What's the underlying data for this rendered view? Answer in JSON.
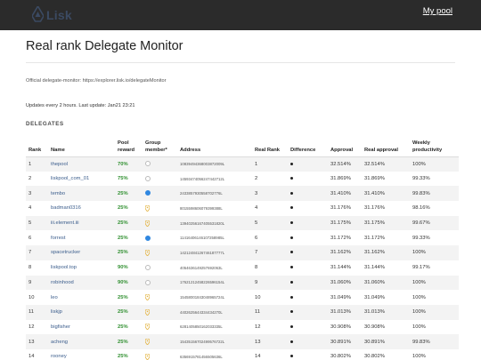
{
  "header": {
    "logo_text": "Lisk",
    "nav_link": "My pool"
  },
  "page": {
    "title": "Real rank Delegate Monitor",
    "info": "Official delegate-monitor: https://explorer.lisk.io/delegateMonitor",
    "updates": "Updates every 2 hours. Last update: Jan21 23:21",
    "section": "DELEGATES"
  },
  "table": {
    "headers": [
      "Rank",
      "Name",
      "Pool reward",
      "Group member*",
      "Address",
      "Real Rank",
      "Difference",
      "Approval",
      "Real approval",
      "Weekly productivity"
    ],
    "rows": [
      {
        "rank": "1",
        "name": "thepool",
        "reward": "70%",
        "member": "circle-empty",
        "address": "10839494368003872009L",
        "real_rank": "1",
        "approval": "32.514%",
        "real_approval": "32.514%",
        "productivity": "100%"
      },
      {
        "rank": "2",
        "name": "liskpool_com_01",
        "reward": "75%",
        "member": "circle-empty",
        "address": "14593474056247442712L",
        "real_rank": "2",
        "approval": "31.869%",
        "real_approval": "31.869%",
        "productivity": "99.33%"
      },
      {
        "rank": "3",
        "name": "tembo",
        "reward": "25%",
        "member": "circle-filled",
        "address": "2433857930558702776L",
        "real_rank": "3",
        "approval": "31.410%",
        "real_approval": "31.410%",
        "productivity": "99.83%"
      },
      {
        "rank": "4",
        "name": "badman0316",
        "reward": "25%",
        "member": "pin",
        "address": "8015598606079399388L",
        "real_rank": "4",
        "approval": "31.176%",
        "real_approval": "31.176%",
        "productivity": "98.16%"
      },
      {
        "rank": "5",
        "name": "iii.element.iii",
        "reward": "25%",
        "member": "pin",
        "address": "13940256167405531820L",
        "real_rank": "5",
        "approval": "31.175%",
        "real_approval": "31.175%",
        "productivity": "99.67%"
      },
      {
        "rank": "6",
        "name": "forrest",
        "reward": "25%",
        "member": "circle-filled",
        "address": "11416406146107258985L",
        "real_rank": "6",
        "approval": "31.172%",
        "real_approval": "31.172%",
        "productivity": "99.33%"
      },
      {
        "rank": "7",
        "name": "spacetrucker",
        "reward": "25%",
        "member": "pin",
        "address": "14212484126746187777L",
        "real_rank": "7",
        "approval": "31.162%",
        "real_approval": "31.162%",
        "productivity": "100%"
      },
      {
        "rank": "8",
        "name": "liskpool.top",
        "reward": "90%",
        "member": "circle-empty",
        "address": "4054636149257692063L",
        "real_rank": "8",
        "approval": "31.144%",
        "real_approval": "31.144%",
        "productivity": "99.17%"
      },
      {
        "rank": "9",
        "name": "robinhood",
        "reward": "90%",
        "member": "circle-empty",
        "address": "17621212458226596154L",
        "real_rank": "9",
        "approval": "31.060%",
        "real_approval": "31.060%",
        "productivity": "100%"
      },
      {
        "rank": "10",
        "name": "leo",
        "reward": "25%",
        "member": "pin",
        "address": "15458001843048965724L",
        "real_rank": "10",
        "approval": "31.049%",
        "real_approval": "31.049%",
        "productivity": "100%"
      },
      {
        "rank": "11",
        "name": "liskjp",
        "reward": "25%",
        "member": "pin",
        "address": "4402625644334434270L",
        "real_rank": "11",
        "approval": "31.013%",
        "real_approval": "31.013%",
        "productivity": "100%"
      },
      {
        "rank": "12",
        "name": "bigfisher",
        "reward": "25%",
        "member": "pin",
        "address": "6281405850162033335L",
        "real_rank": "12",
        "approval": "30.908%",
        "real_approval": "30.908%",
        "productivity": "100%"
      },
      {
        "rank": "13",
        "name": "acheng",
        "reward": "25%",
        "member": "pin",
        "address": "15435156702499576722L",
        "real_rank": "13",
        "approval": "30.891%",
        "real_approval": "30.891%",
        "productivity": "99.83%"
      },
      {
        "rank": "14",
        "name": "rooney",
        "reward": "25%",
        "member": "pin",
        "address": "6356915781456505636L",
        "real_rank": "14",
        "approval": "30.802%",
        "real_approval": "30.802%",
        "productivity": "100%"
      }
    ]
  },
  "colors": {
    "topbar": "#2b2b2b",
    "link": "#3b5d8c",
    "reward": "#2f8f2f",
    "member_filled": "#2f87e0",
    "member_pin": "#e3b341"
  },
  "icons": {
    "logo": "lisk-logo-icon",
    "difference": "dot-icon",
    "member_empty": "circle-outline-icon",
    "member_filled": "circle-filled-icon",
    "member_pin": "location-pin-icon"
  }
}
